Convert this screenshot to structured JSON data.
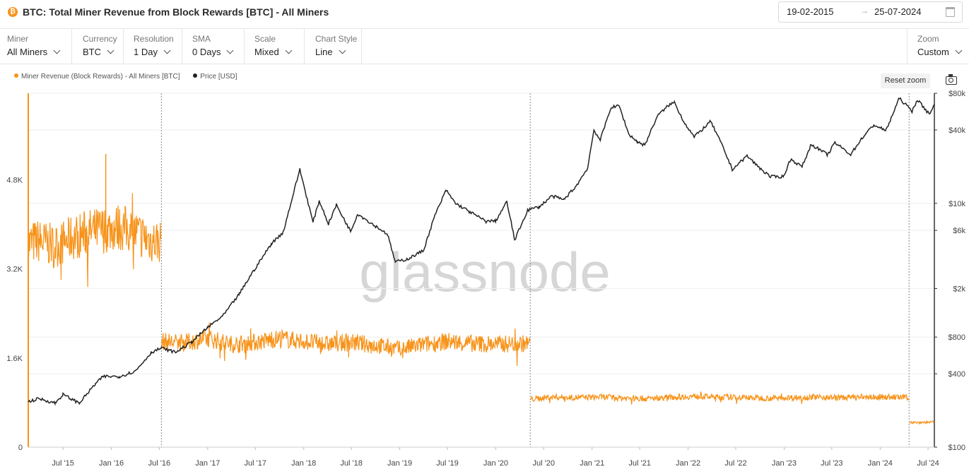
{
  "header": {
    "icon": "btc-icon",
    "title": "BTC: Total Miner Revenue from Block Rewards [BTC] - All Miners",
    "date_from": "19-02-2015",
    "date_to": "25-07-2024",
    "arrow": "→"
  },
  "controls": [
    {
      "label": "Miner",
      "value": "All Miners"
    },
    {
      "label": "Currency",
      "value": "BTC"
    },
    {
      "label": "Resolution",
      "value": "1 Day"
    },
    {
      "label": "SMA",
      "value": "0 Days"
    },
    {
      "label": "Scale",
      "value": "Mixed"
    },
    {
      "label": "Chart Style",
      "value": "Line"
    }
  ],
  "zoom": {
    "label": "Zoom",
    "value": "Custom"
  },
  "toolbar": {
    "reset_zoom": "Reset zoom",
    "camera_icon": "camera-icon"
  },
  "colors": {
    "revenue": "#f7931a",
    "price": "#222222",
    "grid": "#efefef"
  },
  "watermark": "glassnode",
  "chart_data": {
    "type": "line",
    "title": "BTC: Total Miner Revenue from Block Rewards [BTC] - All Miners",
    "legend_position": "top-left",
    "grid": true,
    "x_ticks": [
      "Jul '15",
      "Jan '16",
      "Jul '16",
      "Jan '17",
      "Jul '17",
      "Jan '18",
      "Jul '18",
      "Jan '19",
      "Jul '19",
      "Jan '20",
      "Jul '20",
      "Jan '21",
      "Jul '21",
      "Jan '22",
      "Jul '22",
      "Jan '23",
      "Jul '23",
      "Jan '24",
      "Jul '24"
    ],
    "x_range": [
      "2015-02-19",
      "2024-07-25"
    ],
    "y_left": {
      "scale": "linear",
      "ticks": [
        "0",
        "1.6K",
        "3.2K",
        "4.8K"
      ],
      "tick_values": [
        0,
        1600,
        3200,
        4800
      ],
      "range": [
        0,
        6350
      ]
    },
    "y_right": {
      "scale": "log",
      "ticks": [
        "$100",
        "$400",
        "$800",
        "$2k",
        "$6k",
        "$10k",
        "$40k",
        "$80k"
      ],
      "tick_values": [
        100,
        400,
        800,
        2000,
        6000,
        10000,
        40000,
        80000
      ],
      "range": [
        100,
        80000
      ]
    },
    "halving_dates": [
      "2016-07-09",
      "2020-05-11",
      "2024-04-20"
    ],
    "series": [
      {
        "name": "Miner Revenue (Block Rewards) - All Miners [BTC]",
        "axis": "left",
        "points": [
          [
            "2015-02-19",
            3650
          ],
          [
            "2015-04-01",
            3700
          ],
          [
            "2015-06-01",
            3600
          ],
          [
            "2015-08-01",
            3750
          ],
          [
            "2015-10-01",
            3850
          ],
          [
            "2015-12-01",
            3900
          ],
          [
            "2016-02-01",
            3950
          ],
          [
            "2016-04-01",
            3850
          ],
          [
            "2016-06-01",
            3700
          ],
          [
            "2016-07-08",
            3700
          ],
          [
            "2016-07-10",
            1900
          ],
          [
            "2016-10-01",
            1870
          ],
          [
            "2017-01-01",
            1950
          ],
          [
            "2017-04-01",
            1850
          ],
          [
            "2017-07-01",
            1880
          ],
          [
            "2017-10-01",
            1950
          ],
          [
            "2018-01-01",
            1900
          ],
          [
            "2018-04-01",
            1850
          ],
          [
            "2018-07-01",
            1880
          ],
          [
            "2018-10-01",
            1830
          ],
          [
            "2019-01-01",
            1760
          ],
          [
            "2019-04-01",
            1840
          ],
          [
            "2019-07-01",
            1900
          ],
          [
            "2019-10-01",
            1860
          ],
          [
            "2020-01-01",
            1850
          ],
          [
            "2020-05-10",
            1860
          ],
          [
            "2020-05-12",
            860
          ],
          [
            "2020-08-01",
            900
          ],
          [
            "2020-11-01",
            890
          ],
          [
            "2021-02-01",
            900
          ],
          [
            "2021-05-01",
            880
          ],
          [
            "2021-08-01",
            870
          ],
          [
            "2021-11-01",
            900
          ],
          [
            "2022-02-01",
            910
          ],
          [
            "2022-05-01",
            900
          ],
          [
            "2022-08-01",
            890
          ],
          [
            "2022-11-01",
            880
          ],
          [
            "2023-02-01",
            890
          ],
          [
            "2023-05-01",
            900
          ],
          [
            "2023-08-01",
            890
          ],
          [
            "2023-11-01",
            900
          ],
          [
            "2024-02-01",
            900
          ],
          [
            "2024-04-19",
            890
          ],
          [
            "2024-04-21",
            440
          ],
          [
            "2024-07-25",
            450
          ]
        ],
        "peak": [
          "2016-01-01",
          5260
        ]
      },
      {
        "name": "Price [USD]",
        "axis": "right",
        "points": [
          [
            "2015-02-19",
            236
          ],
          [
            "2015-04-01",
            250
          ],
          [
            "2015-06-01",
            230
          ],
          [
            "2015-07-01",
            270
          ],
          [
            "2015-09-01",
            230
          ],
          [
            "2015-11-01",
            330
          ],
          [
            "2015-12-01",
            380
          ],
          [
            "2016-02-01",
            380
          ],
          [
            "2016-04-01",
            420
          ],
          [
            "2016-06-01",
            600
          ],
          [
            "2016-07-09",
            650
          ],
          [
            "2016-09-01",
            600
          ],
          [
            "2016-11-01",
            730
          ],
          [
            "2017-01-01",
            960
          ],
          [
            "2017-03-01",
            1200
          ],
          [
            "2017-05-01",
            1800
          ],
          [
            "2017-06-15",
            2600
          ],
          [
            "2017-09-01",
            4700
          ],
          [
            "2017-10-15",
            5800
          ],
          [
            "2017-12-17",
            19000
          ],
          [
            "2018-02-05",
            7000
          ],
          [
            "2018-03-01",
            10500
          ],
          [
            "2018-04-05",
            6800
          ],
          [
            "2018-05-05",
            9700
          ],
          [
            "2018-06-28",
            5900
          ],
          [
            "2018-07-25",
            8200
          ],
          [
            "2018-10-01",
            6500
          ],
          [
            "2018-11-15",
            5600
          ],
          [
            "2018-12-15",
            3300
          ],
          [
            "2019-02-01",
            3500
          ],
          [
            "2019-04-01",
            4100
          ],
          [
            "2019-05-15",
            8000
          ],
          [
            "2019-06-26",
            12800
          ],
          [
            "2019-08-01",
            10000
          ],
          [
            "2019-09-25",
            8500
          ],
          [
            "2019-11-25",
            7100
          ],
          [
            "2020-01-01",
            7200
          ],
          [
            "2020-02-12",
            10300
          ],
          [
            "2020-03-13",
            5000
          ],
          [
            "2020-05-01",
            8800
          ],
          [
            "2020-06-15",
            9400
          ],
          [
            "2020-08-01",
            11500
          ],
          [
            "2020-09-15",
            10700
          ],
          [
            "2020-11-01",
            13800
          ],
          [
            "2020-12-15",
            19500
          ],
          [
            "2021-01-08",
            40000
          ],
          [
            "2021-02-01",
            33000
          ],
          [
            "2021-03-13",
            61000
          ],
          [
            "2021-04-14",
            63000
          ],
          [
            "2021-05-20",
            37000
          ],
          [
            "2021-06-22",
            32000
          ],
          [
            "2021-07-20",
            30000
          ],
          [
            "2021-09-06",
            52000
          ],
          [
            "2021-10-20",
            64000
          ],
          [
            "2021-11-10",
            67500
          ],
          [
            "2021-12-15",
            47000
          ],
          [
            "2022-01-24",
            35000
          ],
          [
            "2022-03-28",
            47000
          ],
          [
            "2022-05-10",
            30000
          ],
          [
            "2022-06-18",
            19000
          ],
          [
            "2022-08-13",
            24500
          ],
          [
            "2022-10-01",
            19400
          ],
          [
            "2022-11-10",
            16500
          ],
          [
            "2022-12-30",
            16600
          ],
          [
            "2023-01-25",
            23000
          ],
          [
            "2023-03-10",
            20000
          ],
          [
            "2023-04-14",
            30500
          ],
          [
            "2023-06-15",
            25000
          ],
          [
            "2023-07-13",
            31400
          ],
          [
            "2023-09-11",
            25200
          ],
          [
            "2023-10-25",
            34500
          ],
          [
            "2023-12-08",
            44000
          ],
          [
            "2024-01-23",
            39500
          ],
          [
            "2024-03-14",
            73000
          ],
          [
            "2024-05-01",
            57000
          ],
          [
            "2024-05-21",
            71000
          ],
          [
            "2024-07-05",
            54000
          ],
          [
            "2024-07-25",
            65000
          ]
        ]
      }
    ]
  }
}
